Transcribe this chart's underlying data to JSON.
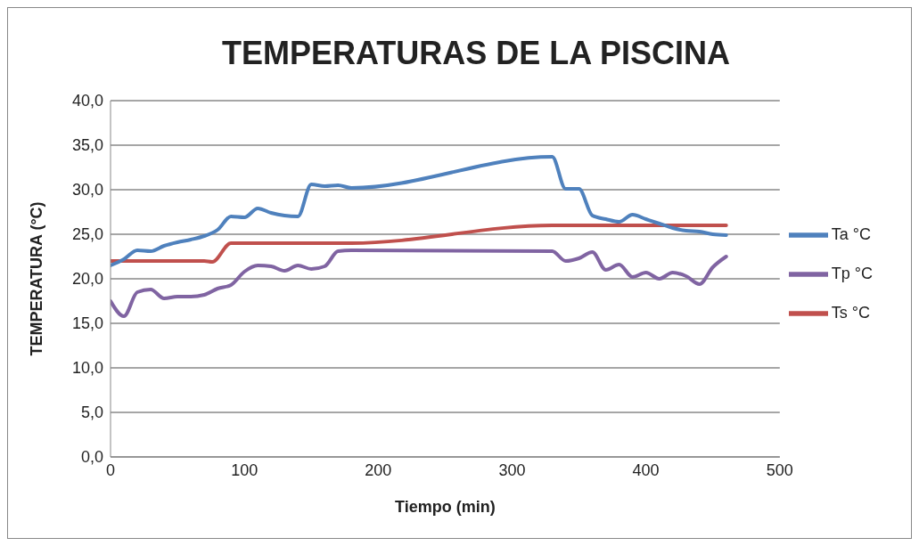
{
  "chart_data": {
    "type": "line",
    "title": "TEMPERATURAS DE LA PISCINA",
    "xlabel": "Tiempo (min)",
    "ylabel": "TEMPERATURA (°C)",
    "x": [
      0,
      10,
      20,
      30,
      40,
      50,
      60,
      70,
      80,
      90,
      100,
      110,
      120,
      130,
      140,
      150,
      160,
      170,
      180,
      330,
      340,
      350,
      360,
      370,
      380,
      390,
      400,
      410,
      420,
      430,
      440,
      450,
      460
    ],
    "series": [
      {
        "name": "Ts °C",
        "color": "#c0504d",
        "x": [
          0,
          70,
          76,
          90,
          100,
          180,
          330,
          460
        ],
        "values": [
          22.0,
          22.0,
          21.9,
          24.0,
          24.0,
          24.0,
          26.0,
          26.0
        ]
      },
      {
        "name": "Tp °C",
        "color": "#8064a2",
        "values": [
          17.5,
          15.8,
          18.5,
          18.8,
          17.8,
          18.0,
          18.0,
          18.2,
          18.9,
          19.3,
          20.8,
          21.5,
          21.4,
          20.9,
          21.5,
          21.1,
          21.4,
          23.1,
          23.2,
          23.1,
          22.0,
          22.3,
          23.0,
          21.0,
          21.6,
          20.2,
          20.7,
          20.0,
          20.7,
          20.3,
          19.4,
          21.3,
          22.5
        ]
      },
      {
        "name": "Ta °C",
        "color": "#4f81bd",
        "values": [
          21.5,
          22.2,
          23.2,
          23.1,
          23.7,
          24.1,
          24.4,
          24.8,
          25.5,
          27.0,
          26.9,
          27.9,
          27.4,
          27.1,
          27.0,
          30.6,
          30.4,
          30.5,
          30.2,
          33.7,
          30.1,
          30.1,
          27.1,
          26.7,
          26.4,
          27.2,
          26.7,
          26.2,
          25.7,
          25.4,
          25.3,
          25.0,
          24.9
        ]
      }
    ],
    "xlim": [
      0,
      500
    ],
    "xticks": [
      0,
      100,
      200,
      300,
      400,
      500
    ],
    "ylim": [
      0,
      40
    ],
    "yticks": [
      {
        "value": 0,
        "label": "0,0"
      },
      {
        "value": 5,
        "label": "5,0"
      },
      {
        "value": 10,
        "label": "10,0"
      },
      {
        "value": 15,
        "label": "15,0"
      },
      {
        "value": 20,
        "label": "20,0"
      },
      {
        "value": 25,
        "label": "25,0"
      },
      {
        "value": 30,
        "label": "30,0"
      },
      {
        "value": 35,
        "label": "35,0"
      },
      {
        "value": 40,
        "label": "40,0"
      }
    ],
    "grid": "y",
    "legend": "right",
    "marker": "none",
    "line_style": "solid"
  }
}
